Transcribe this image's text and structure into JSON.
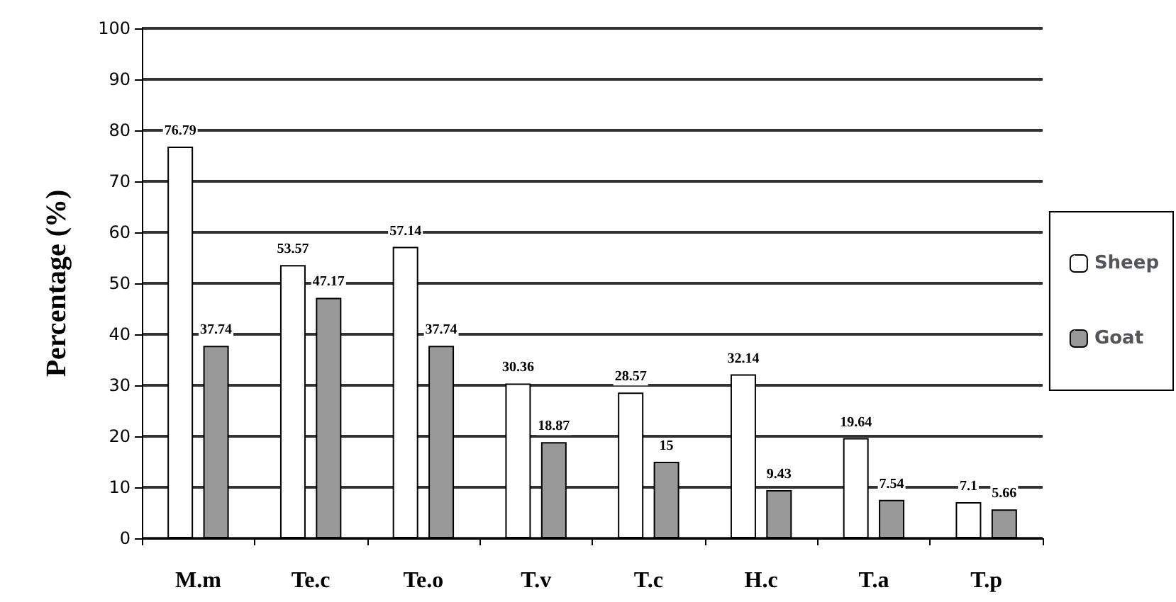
{
  "chart_data": {
    "type": "bar",
    "ylabel": "Percentage (%)",
    "categories": [
      "M.m",
      "Te.c",
      "Te.o",
      "T.v",
      "T.c",
      "H.c",
      "T.a",
      "T.p"
    ],
    "series": [
      {
        "name": "Sheep",
        "color": "#ffffff",
        "values": [
          76.79,
          53.57,
          57.14,
          30.36,
          28.57,
          32.14,
          19.64,
          7.1
        ]
      },
      {
        "name": "Goat",
        "color": "#999999",
        "values": [
          37.74,
          47.17,
          37.74,
          18.87,
          15,
          9.43,
          7.54,
          5.66
        ]
      }
    ],
    "ylim": [
      0,
      100
    ],
    "yticks": [
      0,
      10,
      20,
      30,
      40,
      50,
      60,
      70,
      80,
      90,
      100
    ],
    "grid": "y",
    "legend": "right",
    "data_labels": true
  }
}
